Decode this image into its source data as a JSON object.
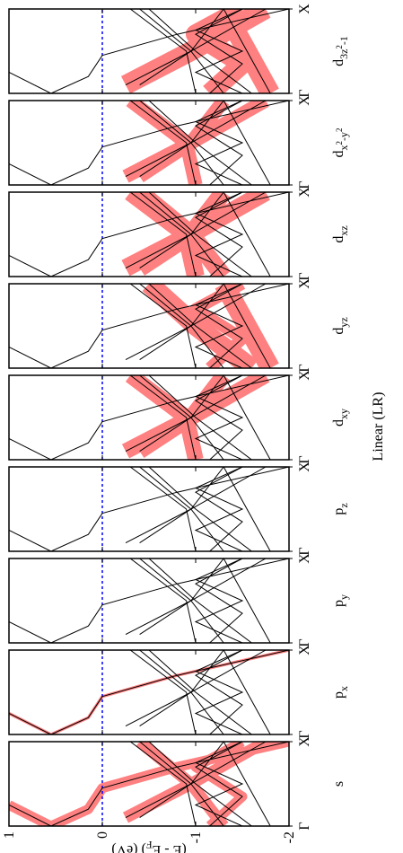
{
  "chart_data": {
    "type": "line",
    "xlabel": "Linear (LR)",
    "ylabel": [
      [
        "(E - E",
        "base"
      ],
      [
        "F",
        "sub"
      ],
      [
        ") (eV)",
        "base"
      ]
    ],
    "xlim": [
      0,
      1
    ],
    "xticks": [
      {
        "value": 0,
        "label": "Γ"
      },
      {
        "value": 1,
        "label": "X"
      }
    ],
    "ylim": [
      -2,
      1
    ],
    "yticks": [
      1,
      0,
      -1,
      -2
    ],
    "fermi_level": 0,
    "fermi_color": "#0000ff",
    "line_color": "#000000",
    "fat_color": "#ff8080",
    "series": [
      {
        "x": [
          0,
          0.25
        ],
        "values": [
          0.55,
          1
        ]
      },
      {
        "x": [
          0,
          0.2,
          0.45,
          0.7,
          1
        ],
        "values": [
          0.55,
          0.15,
          0,
          -0.8,
          -2
        ]
      },
      {
        "x": [
          0.1,
          0.5,
          1
        ],
        "values": [
          -0.25,
          -0.95,
          -1.75
        ]
      },
      {
        "x": [
          0.1,
          0.5,
          1
        ],
        "values": [
          -0.4,
          -0.95,
          -1.3
        ]
      },
      {
        "x": [
          0,
          0.5,
          1
        ],
        "values": [
          -1.0,
          -0.9,
          -0.3
        ]
      },
      {
        "x": [
          0,
          0.5,
          1
        ],
        "values": [
          -1.3,
          -0.95,
          -0.4
        ]
      },
      {
        "x": [
          0,
          0.5,
          1
        ],
        "values": [
          -1.6,
          -1.0,
          -0.5
        ]
      },
      {
        "x": [
          0,
          1
        ],
        "values": [
          -1.8,
          -1.3
        ]
      },
      {
        "x": [
          0,
          0.35,
          0.7,
          1
        ],
        "values": [
          -1.15,
          -1.5,
          -1.0,
          -1.5
        ]
      },
      {
        "x": [
          0,
          0.25,
          0.5,
          0.75,
          1
        ],
        "values": [
          -1.5,
          -1.0,
          -1.5,
          -1.0,
          -1.5
        ]
      }
    ],
    "panels": [
      {
        "label": [
          [
            "s",
            "base"
          ]
        ],
        "weights": [
          0.5,
          0.5,
          0.6,
          0,
          0,
          0.6,
          0,
          0,
          0.5,
          0
        ]
      },
      {
        "label": [
          [
            "p",
            "base"
          ],
          [
            "x",
            "sub"
          ]
        ],
        "weights": [
          0.15,
          0.15,
          0,
          0,
          0,
          0,
          0,
          0,
          0,
          0
        ]
      },
      {
        "label": [
          [
            "p",
            "base"
          ],
          [
            "y",
            "sub"
          ]
        ],
        "weights": [
          0,
          0,
          0,
          0,
          0,
          0,
          0,
          0,
          0,
          0
        ]
      },
      {
        "label": [
          [
            "p",
            "base"
          ],
          [
            "z",
            "sub"
          ]
        ],
        "weights": [
          0,
          0,
          0,
          0,
          0,
          0,
          0,
          0,
          0,
          0
        ]
      },
      {
        "label": [
          [
            "d",
            "base"
          ],
          [
            "xy",
            "sub"
          ]
        ],
        "weights": [
          0,
          0,
          0.8,
          0.8,
          0.8,
          0,
          0,
          0,
          0,
          0
        ]
      },
      {
        "label": [
          [
            "d",
            "base"
          ],
          [
            "yz",
            "sub"
          ]
        ],
        "weights": [
          0,
          0,
          0,
          0,
          0,
          0,
          1,
          1,
          0.6,
          0
        ]
      },
      {
        "label": [
          [
            "d",
            "base"
          ],
          [
            "xz",
            "sub"
          ]
        ],
        "weights": [
          0,
          0,
          0.9,
          0.9,
          0.9,
          0.9,
          0,
          0,
          0,
          0
        ]
      },
      {
        "label": [
          [
            "d",
            "base"
          ],
          [
            "x",
            "sub"
          ],
          [
            "2",
            "subsup"
          ],
          [
            "-y",
            "sub"
          ],
          [
            "2",
            "subsup"
          ]
        ],
        "weights": [
          0,
          0,
          0.7,
          0.7,
          0.7,
          0,
          0,
          0,
          0,
          0
        ]
      },
      {
        "label": [
          [
            "d",
            "base"
          ],
          [
            "3z",
            "sub"
          ],
          [
            "2",
            "subsup"
          ],
          [
            "-1",
            "sub"
          ]
        ],
        "weights": [
          0,
          0,
          1,
          0,
          0,
          0,
          0,
          1,
          1,
          0
        ]
      }
    ]
  }
}
